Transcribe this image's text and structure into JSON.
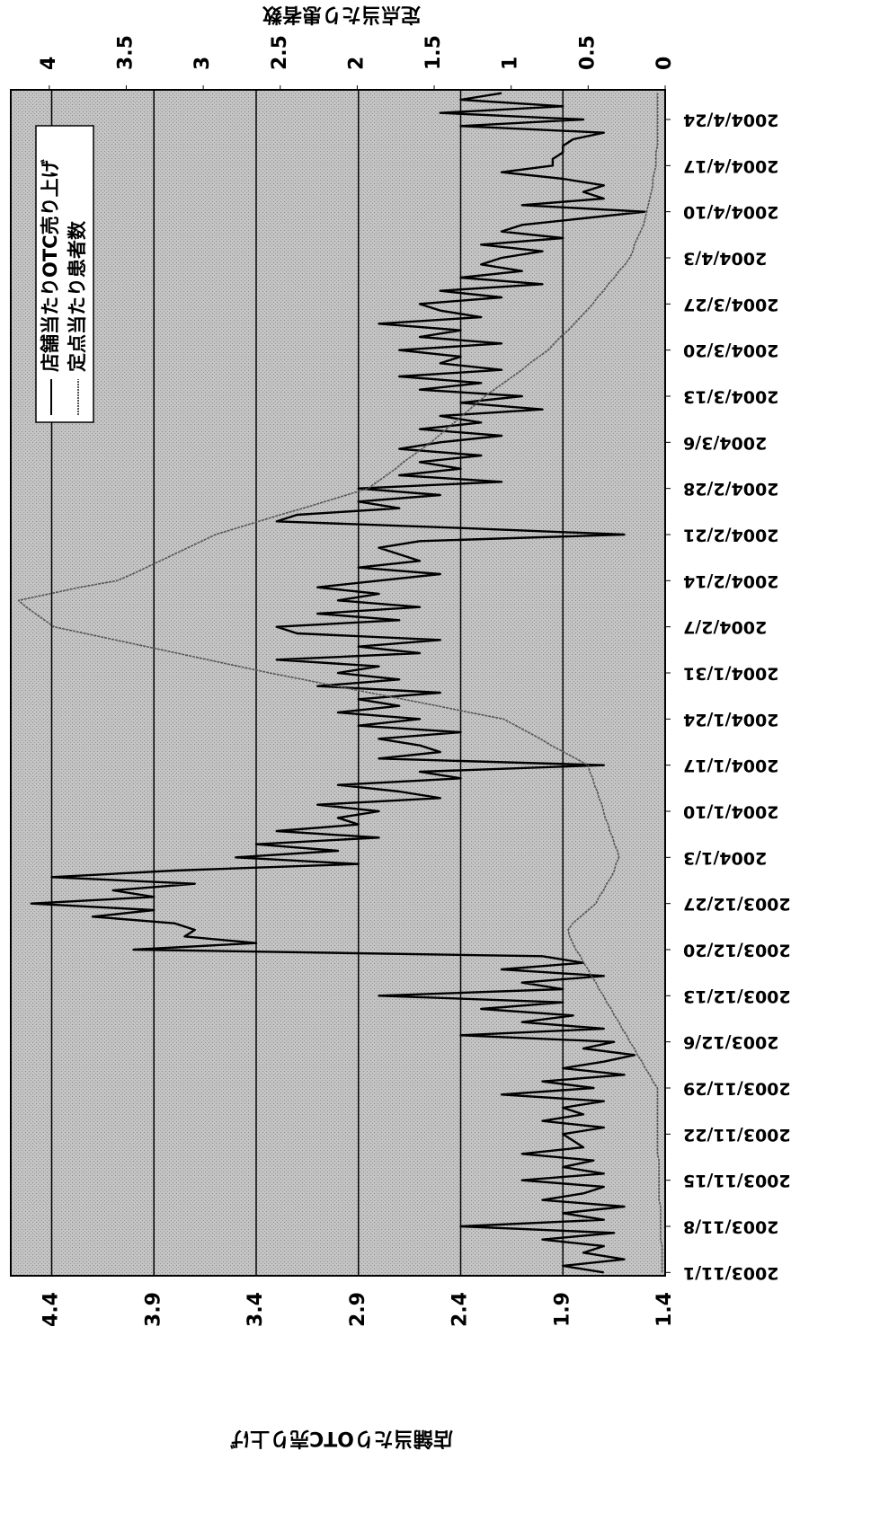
{
  "chart_data": {
    "type": "line",
    "y_label": "店舗当たりOTC売り上げ",
    "y2_label": "定点当たり患者数",
    "categories": [
      "2003/11/1",
      null,
      null,
      null,
      null,
      null,
      null,
      "2003/11/8",
      null,
      null,
      null,
      null,
      null,
      null,
      "2003/11/15",
      null,
      null,
      null,
      null,
      null,
      null,
      "2003/11/22",
      null,
      null,
      null,
      null,
      null,
      null,
      "2003/11/29",
      null,
      null,
      null,
      null,
      null,
      null,
      "2003/12/6",
      null,
      null,
      null,
      null,
      null,
      null,
      "2003/12/13",
      null,
      null,
      null,
      null,
      null,
      null,
      "2003/12/20",
      null,
      null,
      null,
      null,
      null,
      null,
      "2003/12/27",
      null,
      null,
      null,
      null,
      null,
      null,
      "2004/1/3",
      null,
      null,
      null,
      null,
      null,
      null,
      "2004/1/10",
      null,
      null,
      null,
      null,
      null,
      null,
      "2004/1/17",
      null,
      null,
      null,
      null,
      null,
      null,
      "2004/1/24",
      null,
      null,
      null,
      null,
      null,
      null,
      "2004/1/31",
      null,
      null,
      null,
      null,
      null,
      null,
      "2004/2/7",
      null,
      null,
      null,
      null,
      null,
      null,
      "2004/2/14",
      null,
      null,
      null,
      null,
      null,
      null,
      "2004/2/21",
      null,
      null,
      null,
      null,
      null,
      null,
      "2004/2/28",
      null,
      null,
      null,
      null,
      null,
      null,
      "2004/3/6",
      null,
      null,
      null,
      null,
      null,
      null,
      "2004/3/13",
      null,
      null,
      null,
      null,
      null,
      null,
      "2004/3/20",
      null,
      null,
      null,
      null,
      null,
      null,
      "2004/3/27",
      null,
      null,
      null,
      null,
      null,
      null,
      "2004/4/3",
      null,
      null,
      null,
      null,
      null,
      null,
      "2004/4/10",
      null,
      null,
      null,
      null,
      null,
      null,
      "2004/4/17",
      null,
      null,
      null,
      null,
      null,
      null,
      "2004/4/24",
      null,
      null,
      null,
      null
    ],
    "series": [
      {
        "name": "店舗当たりOTC売り上げ",
        "color": "#000000",
        "axis": "y",
        "values": [
          1.7,
          1.9,
          1.6,
          1.8,
          1.7,
          2.0,
          1.65,
          2.4,
          1.7,
          1.9,
          1.6,
          2.0,
          1.8,
          1.7,
          2.1,
          1.7,
          1.9,
          1.75,
          2.1,
          1.8,
          1.85,
          1.9,
          1.7,
          2.0,
          1.8,
          1.9,
          1.7,
          2.2,
          1.75,
          2.0,
          1.6,
          1.9,
          1.7,
          1.55,
          1.8,
          1.65,
          2.4,
          1.7,
          2.1,
          1.85,
          2.3,
          1.9,
          2.8,
          1.9,
          2.1,
          1.7,
          2.2,
          1.8,
          2.0,
          4.0,
          3.4,
          3.75,
          3.7,
          3.8,
          4.2,
          3.9,
          4.5,
          3.9,
          4.1,
          3.7,
          4.4,
          3.8,
          2.9,
          3.5,
          3.0,
          3.4,
          2.8,
          3.3,
          2.9,
          3.0,
          2.8,
          3.1,
          2.5,
          2.7,
          3.0,
          2.4,
          2.6,
          1.7,
          2.8,
          2.5,
          2.6,
          2.8,
          2.4,
          2.9,
          2.6,
          3.0,
          2.7,
          2.9,
          2.5,
          3.1,
          2.7,
          3.0,
          2.8,
          3.3,
          2.6,
          2.9,
          2.5,
          3.2,
          3.3,
          2.7,
          3.1,
          2.6,
          3.0,
          2.8,
          3.1,
          2.8,
          2.5,
          2.9,
          2.6,
          2.7,
          2.8,
          2.6,
          1.6,
          2.4,
          3.3,
          3.2,
          2.7,
          2.9,
          2.5,
          2.9,
          2.2,
          2.7,
          2.4,
          2.6,
          2.3,
          2.7,
          2.5,
          2.2,
          2.6,
          2.3,
          2.5,
          2.0,
          2.4,
          2.1,
          2.6,
          2.3,
          2.7,
          2.2,
          2.5,
          2.4,
          2.7,
          2.2,
          2.6,
          2.4,
          2.8,
          2.3,
          2.5,
          2.6,
          2.2,
          2.5,
          2.0,
          2.4,
          2.1,
          2.3,
          2.2,
          2.0,
          2.3,
          1.9,
          2.2,
          2.1,
          1.8,
          1.5,
          2.1,
          1.7,
          1.8,
          1.7,
          1.9,
          2.2,
          1.95,
          1.95,
          1.9,
          1.9,
          1.85,
          1.7,
          2.4,
          1.8,
          2.5,
          1.9,
          2.4,
          2.2
        ]
      },
      {
        "name": "定点当たり患者数",
        "color": "#555555",
        "axis": "y2",
        "dashed": true,
        "values": [
          0.02,
          0.02,
          0.02,
          0.02,
          0.02,
          0.03,
          0.03,
          0.03,
          0.03,
          0.03,
          0.03,
          0.04,
          0.04,
          0.04,
          0.04,
          0.04,
          0.04,
          0.04,
          0.05,
          0.05,
          0.05,
          0.05,
          0.05,
          0.05,
          0.05,
          0.05,
          0.05,
          0.05,
          0.05,
          0.08,
          0.1,
          0.13,
          0.15,
          0.18,
          0.2,
          0.23,
          0.25,
          0.28,
          0.3,
          0.33,
          0.35,
          0.38,
          0.4,
          0.43,
          0.45,
          0.48,
          0.5,
          0.53,
          0.55,
          0.58,
          0.6,
          0.62,
          0.63,
          0.6,
          0.55,
          0.5,
          0.45,
          0.43,
          0.4,
          0.38,
          0.35,
          0.33,
          0.32,
          0.3,
          0.31,
          0.33,
          0.34,
          0.36,
          0.37,
          0.39,
          0.4,
          0.41,
          0.43,
          0.44,
          0.46,
          0.47,
          0.49,
          0.5,
          0.58,
          0.66,
          0.74,
          0.81,
          0.89,
          0.97,
          1.05,
          1.27,
          1.48,
          1.7,
          1.92,
          2.14,
          2.35,
          2.57,
          2.77,
          2.97,
          3.17,
          3.37,
          3.57,
          3.77,
          3.97,
          4.03,
          4.09,
          4.15,
          4.2,
          4.0,
          3.8,
          3.56,
          3.46,
          3.37,
          3.28,
          3.19,
          3.1,
          3.01,
          2.92,
          2.78,
          2.64,
          2.5,
          2.35,
          2.21,
          2.07,
          1.93,
          1.87,
          1.81,
          1.75,
          1.7,
          1.64,
          1.58,
          1.52,
          1.47,
          1.42,
          1.37,
          1.32,
          1.27,
          1.22,
          1.17,
          1.11,
          1.05,
          0.99,
          0.93,
          0.88,
          0.82,
          0.76,
          0.72,
          0.68,
          0.63,
          0.59,
          0.55,
          0.51,
          0.47,
          0.44,
          0.4,
          0.37,
          0.33,
          0.3,
          0.26,
          0.23,
          0.21,
          0.2,
          0.18,
          0.16,
          0.14,
          0.13,
          0.12,
          0.11,
          0.1,
          0.09,
          0.08,
          0.08,
          0.07,
          0.06,
          0.06,
          0.06,
          0.05,
          0.05,
          0.05,
          0.05,
          0.05,
          0.05,
          0.05,
          0.05,
          0.05
        ]
      }
    ],
    "ylim": [
      1.4,
      4.6
    ],
    "yticks": [
      1.4,
      1.9,
      2.4,
      2.9,
      3.4,
      3.9,
      4.4
    ],
    "y2lim": [
      0,
      4.25
    ],
    "y2ticks": [
      0,
      0.5,
      1,
      1.5,
      2,
      2.5,
      3,
      3.5,
      4
    ],
    "grid": true,
    "legend": "top-right"
  }
}
